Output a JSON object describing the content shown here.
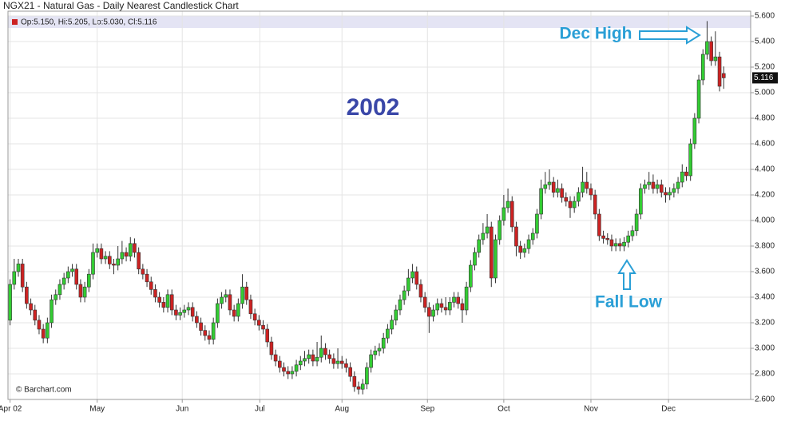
{
  "chart_data": {
    "type": "candlestick",
    "title": "NGX21 - Natural Gas - Daily Nearest Candlestick Chart",
    "legend_text": "Op:5.150, Hi:5.205, Lo:5.030, Cl:5.116",
    "watermark": "© Barchart.com",
    "annotations": {
      "year": "2002",
      "high": "Dec High",
      "low": "Fall Low"
    },
    "up_color": "#33cc33",
    "down_color": "#cc2222",
    "grid": true,
    "xlim": [
      -0.5,
      178.5
    ],
    "xticks": [
      {
        "value": 0,
        "label": "Apr 02"
      },
      {
        "value": 21,
        "label": "May"
      },
      {
        "value": 41.5,
        "label": "Jun"
      },
      {
        "value": 60.2,
        "label": "Jul"
      },
      {
        "value": 80,
        "label": "Aug"
      },
      {
        "value": 100.6,
        "label": "Sep"
      },
      {
        "value": 119,
        "label": "Oct"
      },
      {
        "value": 140,
        "label": "Nov"
      },
      {
        "value": 158.7,
        "label": "Dec"
      }
    ],
    "ylim": [
      2.6,
      5.6
    ],
    "yticks": [
      {
        "value": 2.6,
        "label": "2.600"
      },
      {
        "value": 2.8,
        "label": "2.800"
      },
      {
        "value": 3.0,
        "label": "3.000"
      },
      {
        "value": 3.2,
        "label": "3.200"
      },
      {
        "value": 3.4,
        "label": "3.400"
      },
      {
        "value": 3.6,
        "label": "3.600"
      },
      {
        "value": 3.8,
        "label": "3.800"
      },
      {
        "value": 4.0,
        "label": "4.000"
      },
      {
        "value": 4.2,
        "label": "4.200"
      },
      {
        "value": 4.4,
        "label": "4.400"
      },
      {
        "value": 4.6,
        "label": "4.600"
      },
      {
        "value": 4.8,
        "label": "4.800"
      },
      {
        "value": 5.0,
        "label": "5.000"
      },
      {
        "value": 5.2,
        "label": "5.200"
      },
      {
        "value": 5.4,
        "label": "5.400"
      },
      {
        "value": 5.6,
        "label": "5.600"
      }
    ],
    "ohlc": [
      [
        3.22,
        3.54,
        3.18,
        3.5
      ],
      [
        3.5,
        3.7,
        3.46,
        3.6
      ],
      [
        3.6,
        3.7,
        3.56,
        3.66
      ],
      [
        3.66,
        3.7,
        3.44,
        3.48
      ],
      [
        3.48,
        3.52,
        3.31,
        3.35
      ],
      [
        3.35,
        3.39,
        3.26,
        3.3
      ],
      [
        3.3,
        3.34,
        3.18,
        3.22
      ],
      [
        3.22,
        3.26,
        3.11,
        3.15
      ],
      [
        3.15,
        3.19,
        3.04,
        3.08
      ],
      [
        3.08,
        3.24,
        3.04,
        3.2
      ],
      [
        3.2,
        3.42,
        3.16,
        3.38
      ],
      [
        3.38,
        3.46,
        3.34,
        3.42
      ],
      [
        3.42,
        3.54,
        3.38,
        3.5
      ],
      [
        3.5,
        3.59,
        3.46,
        3.55
      ],
      [
        3.55,
        3.64,
        3.51,
        3.6
      ],
      [
        3.6,
        3.66,
        3.56,
        3.62
      ],
      [
        3.62,
        3.66,
        3.46,
        3.5
      ],
      [
        3.5,
        3.54,
        3.36,
        3.4
      ],
      [
        3.4,
        3.52,
        3.36,
        3.48
      ],
      [
        3.48,
        3.62,
        3.44,
        3.58
      ],
      [
        3.58,
        3.82,
        3.54,
        3.75
      ],
      [
        3.75,
        3.82,
        3.71,
        3.78
      ],
      [
        3.78,
        3.82,
        3.66,
        3.7
      ],
      [
        3.7,
        3.76,
        3.66,
        3.72
      ],
      [
        3.72,
        3.76,
        3.62,
        3.66
      ],
      [
        3.66,
        3.7,
        3.58,
        3.65
      ],
      [
        3.65,
        3.8,
        3.61,
        3.7
      ],
      [
        3.7,
        3.84,
        3.66,
        3.75
      ],
      [
        3.75,
        3.79,
        3.68,
        3.72
      ],
      [
        3.72,
        3.87,
        3.68,
        3.82
      ],
      [
        3.82,
        3.86,
        3.71,
        3.75
      ],
      [
        3.75,
        3.79,
        3.58,
        3.62
      ],
      [
        3.62,
        3.66,
        3.54,
        3.58
      ],
      [
        3.58,
        3.62,
        3.48,
        3.52
      ],
      [
        3.52,
        3.56,
        3.42,
        3.46
      ],
      [
        3.46,
        3.5,
        3.36,
        3.4
      ],
      [
        3.4,
        3.44,
        3.32,
        3.36
      ],
      [
        3.36,
        3.4,
        3.28,
        3.32
      ],
      [
        3.32,
        3.46,
        3.28,
        3.42
      ],
      [
        3.42,
        3.46,
        3.26,
        3.3
      ],
      [
        3.3,
        3.34,
        3.22,
        3.26
      ],
      [
        3.26,
        3.32,
        3.22,
        3.28
      ],
      [
        3.28,
        3.34,
        3.24,
        3.3
      ],
      [
        3.3,
        3.36,
        3.26,
        3.32
      ],
      [
        3.32,
        3.36,
        3.21,
        3.25
      ],
      [
        3.25,
        3.29,
        3.16,
        3.2
      ],
      [
        3.2,
        3.24,
        3.1,
        3.14
      ],
      [
        3.14,
        3.18,
        3.06,
        3.1
      ],
      [
        3.1,
        3.14,
        3.03,
        3.07
      ],
      [
        3.07,
        3.24,
        3.03,
        3.2
      ],
      [
        3.2,
        3.39,
        3.16,
        3.35
      ],
      [
        3.35,
        3.44,
        3.31,
        3.4
      ],
      [
        3.4,
        3.46,
        3.36,
        3.42
      ],
      [
        3.42,
        3.46,
        3.26,
        3.3
      ],
      [
        3.3,
        3.34,
        3.21,
        3.25
      ],
      [
        3.25,
        3.39,
        3.21,
        3.35
      ],
      [
        3.35,
        3.58,
        3.31,
        3.48
      ],
      [
        3.48,
        3.52,
        3.34,
        3.38
      ],
      [
        3.38,
        3.42,
        3.23,
        3.27
      ],
      [
        3.27,
        3.31,
        3.18,
        3.22
      ],
      [
        3.22,
        3.26,
        3.14,
        3.18
      ],
      [
        3.18,
        3.22,
        3.11,
        3.15
      ],
      [
        3.15,
        3.19,
        3.01,
        3.05
      ],
      [
        3.05,
        3.09,
        2.91,
        2.95
      ],
      [
        2.95,
        2.99,
        2.86,
        2.9
      ],
      [
        2.9,
        2.94,
        2.81,
        2.85
      ],
      [
        2.85,
        2.89,
        2.78,
        2.82
      ],
      [
        2.82,
        2.86,
        2.76,
        2.8
      ],
      [
        2.8,
        2.86,
        2.76,
        2.82
      ],
      [
        2.82,
        2.91,
        2.78,
        2.87
      ],
      [
        2.87,
        2.94,
        2.83,
        2.9
      ],
      [
        2.9,
        2.98,
        2.86,
        2.92
      ],
      [
        2.92,
        2.99,
        2.88,
        2.95
      ],
      [
        2.95,
        2.99,
        2.86,
        2.9
      ],
      [
        2.9,
        3.05,
        2.86,
        2.93
      ],
      [
        2.93,
        3.1,
        2.89,
        3.0
      ],
      [
        3.0,
        3.04,
        2.91,
        2.95
      ],
      [
        2.95,
        2.99,
        2.88,
        2.92
      ],
      [
        2.92,
        2.96,
        2.84,
        2.88
      ],
      [
        2.88,
        3.0,
        2.84,
        2.9
      ],
      [
        2.9,
        2.94,
        2.84,
        2.88
      ],
      [
        2.88,
        2.92,
        2.81,
        2.85
      ],
      [
        2.85,
        2.89,
        2.74,
        2.78
      ],
      [
        2.78,
        2.82,
        2.66,
        2.7
      ],
      [
        2.7,
        2.74,
        2.64,
        2.68
      ],
      [
        2.68,
        2.76,
        2.64,
        2.72
      ],
      [
        2.72,
        2.89,
        2.68,
        2.85
      ],
      [
        2.85,
        2.99,
        2.81,
        2.95
      ],
      [
        2.95,
        3.02,
        2.91,
        2.98
      ],
      [
        2.98,
        3.04,
        2.94,
        3.0
      ],
      [
        3.0,
        3.12,
        2.96,
        3.08
      ],
      [
        3.08,
        3.19,
        3.04,
        3.15
      ],
      [
        3.15,
        3.26,
        3.11,
        3.22
      ],
      [
        3.22,
        3.34,
        3.18,
        3.3
      ],
      [
        3.3,
        3.42,
        3.26,
        3.38
      ],
      [
        3.38,
        3.49,
        3.34,
        3.45
      ],
      [
        3.45,
        3.62,
        3.41,
        3.55
      ],
      [
        3.55,
        3.66,
        3.51,
        3.6
      ],
      [
        3.6,
        3.64,
        3.46,
        3.5
      ],
      [
        3.5,
        3.54,
        3.36,
        3.4
      ],
      [
        3.4,
        3.44,
        3.28,
        3.32
      ],
      [
        3.32,
        3.36,
        3.12,
        3.25
      ],
      [
        3.25,
        3.34,
        3.21,
        3.3
      ],
      [
        3.3,
        3.39,
        3.26,
        3.35
      ],
      [
        3.35,
        3.39,
        3.28,
        3.32
      ],
      [
        3.32,
        3.4,
        3.26,
        3.3
      ],
      [
        3.3,
        3.4,
        3.26,
        3.36
      ],
      [
        3.36,
        3.44,
        3.32,
        3.4
      ],
      [
        3.4,
        3.44,
        3.31,
        3.35
      ],
      [
        3.35,
        3.39,
        3.2,
        3.3
      ],
      [
        3.3,
        3.52,
        3.26,
        3.48
      ],
      [
        3.48,
        3.69,
        3.44,
        3.65
      ],
      [
        3.65,
        3.79,
        3.61,
        3.75
      ],
      [
        3.75,
        3.89,
        3.71,
        3.85
      ],
      [
        3.85,
        3.98,
        3.81,
        3.9
      ],
      [
        3.9,
        4.05,
        3.86,
        3.95
      ],
      [
        3.95,
        3.99,
        3.48,
        3.55
      ],
      [
        3.55,
        3.89,
        3.51,
        3.85
      ],
      [
        3.85,
        4.04,
        3.81,
        4.0
      ],
      [
        4.0,
        4.2,
        3.96,
        4.1
      ],
      [
        4.1,
        4.25,
        4.06,
        4.15
      ],
      [
        4.15,
        4.19,
        3.91,
        3.95
      ],
      [
        3.95,
        3.99,
        3.72,
        3.8
      ],
      [
        3.8,
        3.84,
        3.7,
        3.75
      ],
      [
        3.75,
        3.82,
        3.71,
        3.78
      ],
      [
        3.78,
        3.89,
        3.74,
        3.85
      ],
      [
        3.85,
        3.94,
        3.81,
        3.9
      ],
      [
        3.9,
        4.09,
        3.86,
        4.05
      ],
      [
        4.05,
        4.32,
        4.01,
        4.25
      ],
      [
        4.25,
        4.38,
        4.21,
        4.28
      ],
      [
        4.28,
        4.4,
        4.24,
        4.3
      ],
      [
        4.3,
        4.34,
        4.18,
        4.22
      ],
      [
        4.22,
        4.32,
        4.18,
        4.25
      ],
      [
        4.25,
        4.29,
        4.14,
        4.18
      ],
      [
        4.18,
        4.22,
        4.11,
        4.15
      ],
      [
        4.15,
        4.19,
        4.02,
        4.1
      ],
      [
        4.1,
        4.19,
        4.06,
        4.15
      ],
      [
        4.15,
        4.26,
        4.11,
        4.22
      ],
      [
        4.22,
        4.42,
        4.18,
        4.3
      ],
      [
        4.3,
        4.38,
        4.21,
        4.25
      ],
      [
        4.25,
        4.29,
        4.16,
        4.2
      ],
      [
        4.2,
        4.24,
        4.01,
        4.05
      ],
      [
        4.05,
        4.09,
        3.84,
        3.88
      ],
      [
        3.88,
        3.92,
        3.82,
        3.86
      ],
      [
        3.86,
        3.9,
        3.81,
        3.85
      ],
      [
        3.85,
        3.89,
        3.76,
        3.8
      ],
      [
        3.8,
        3.86,
        3.76,
        3.82
      ],
      [
        3.82,
        3.86,
        3.76,
        3.8
      ],
      [
        3.8,
        3.87,
        3.76,
        3.83
      ],
      [
        3.83,
        3.92,
        3.79,
        3.88
      ],
      [
        3.88,
        3.96,
        3.84,
        3.92
      ],
      [
        3.92,
        4.09,
        3.88,
        4.05
      ],
      [
        4.05,
        4.29,
        4.01,
        4.25
      ],
      [
        4.25,
        4.32,
        4.21,
        4.28
      ],
      [
        4.28,
        4.38,
        4.24,
        4.3
      ],
      [
        4.3,
        4.36,
        4.21,
        4.25
      ],
      [
        4.25,
        4.32,
        4.21,
        4.28
      ],
      [
        4.28,
        4.32,
        4.18,
        4.22
      ],
      [
        4.22,
        4.26,
        4.14,
        4.2
      ],
      [
        4.2,
        4.26,
        4.16,
        4.22
      ],
      [
        4.22,
        4.29,
        4.18,
        4.25
      ],
      [
        4.25,
        4.34,
        4.21,
        4.3
      ],
      [
        4.3,
        4.44,
        4.26,
        4.38
      ],
      [
        4.38,
        4.42,
        4.31,
        4.35
      ],
      [
        4.35,
        4.64,
        4.31,
        4.6
      ],
      [
        4.6,
        4.84,
        4.56,
        4.8
      ],
      [
        4.8,
        5.14,
        4.76,
        5.1
      ],
      [
        5.1,
        5.34,
        5.06,
        5.3
      ],
      [
        5.3,
        5.56,
        5.26,
        5.4
      ],
      [
        5.4,
        5.44,
        5.21,
        5.25
      ],
      [
        5.25,
        5.48,
        5.21,
        5.28
      ],
      [
        5.28,
        5.32,
        5.01,
        5.05
      ],
      [
        5.15,
        5.205,
        5.03,
        5.116
      ]
    ]
  }
}
